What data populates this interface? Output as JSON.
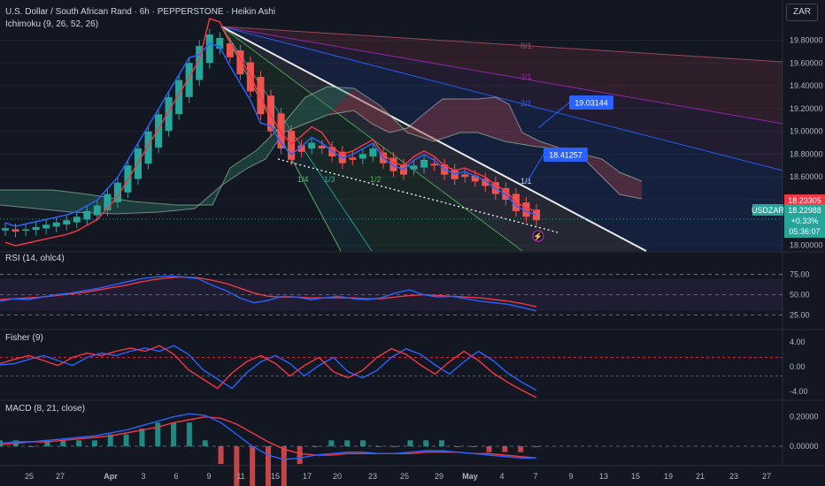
{
  "header": {
    "title": "U.S. Dollar / South African Rand · 6h · PEPPERSTONE · Heikin Ashi",
    "indicator": "Ichimoku (9, 26, 52, 26)",
    "currency_button": "ZAR"
  },
  "colors": {
    "background": "#131722",
    "bull": "#26a69a",
    "bear": "#ef5350",
    "ma_red": "#f23645",
    "ma_blue": "#2962ff",
    "cloud_bull": "#2e7d6b",
    "cloud_bear": "#8e3b48",
    "rsi_line": "#2962ff",
    "rsi_ma": "#f23645"
  },
  "chart_data": [
    {
      "type": "candlestick",
      "style": "Heikin Ashi",
      "symbol": "USDZAR",
      "price_axis_ticks": [
        "19.80000",
        "19.60000",
        "19.40000",
        "19.20000",
        "19.00000",
        "18.80000",
        "18.60000",
        "18.40000",
        "18.00000"
      ],
      "time_axis_ticks": [
        "25",
        "27",
        "Apr",
        "3",
        "6",
        "9",
        "11",
        "15",
        "17",
        "20",
        "23",
        "25",
        "29",
        "May",
        "4",
        "7",
        "9",
        "13",
        "15",
        "19",
        "21",
        "23",
        "27"
      ],
      "last_price": "18.22988",
      "prev_price_badge": "18.23305",
      "change": "+0.33%",
      "countdown": "05:36:07",
      "fan_labels": [
        "8/1",
        "3/1",
        "2/1",
        "1/1",
        "1/2",
        "1/3",
        "1/4"
      ],
      "callouts": [
        "19.03144",
        "18.41257"
      ],
      "closes_approx": [
        18.15,
        18.12,
        18.14,
        18.16,
        18.18,
        18.2,
        18.22,
        18.25,
        18.3,
        18.35,
        18.45,
        18.55,
        18.7,
        18.85,
        19.0,
        19.15,
        19.3,
        19.45,
        19.6,
        19.75,
        19.85,
        19.82,
        19.65,
        19.5,
        19.35,
        19.15,
        19.0,
        18.85,
        18.75,
        18.82,
        18.9,
        18.85,
        18.78,
        18.72,
        18.75,
        18.8,
        18.85,
        18.72,
        18.65,
        18.62,
        18.7,
        18.75,
        18.7,
        18.62,
        18.58,
        18.6,
        18.56,
        18.52,
        18.45,
        18.4,
        18.3,
        18.25,
        18.22
      ]
    },
    {
      "type": "line",
      "title": "RSI (14, ohlc4)",
      "ticks": [
        "75.00",
        "50.00",
        "25.00"
      ],
      "series": [
        {
          "name": "RSI",
          "values": [
            42,
            45,
            44,
            47,
            50,
            52,
            55,
            58,
            62,
            66,
            70,
            72,
            73,
            72,
            70,
            62,
            55,
            46,
            40,
            43,
            48,
            47,
            44,
            46,
            48,
            45,
            44,
            46,
            52,
            56,
            50,
            47,
            48,
            45,
            42,
            40,
            38,
            34,
            30
          ]
        },
        {
          "name": "RSI MA",
          "values": [
            44,
            45,
            46,
            47,
            49,
            51,
            53,
            56,
            59,
            62,
            66,
            69,
            71,
            72,
            71,
            68,
            64,
            58,
            52,
            48,
            47,
            47,
            46,
            46,
            46,
            46,
            45,
            45,
            47,
            49,
            50,
            49,
            48,
            47,
            46,
            44,
            42,
            39,
            35
          ]
        }
      ]
    },
    {
      "type": "line",
      "title": "Fisher (9)",
      "ticks": [
        "4.00",
        "0.00",
        "-4.00"
      ],
      "series": [
        {
          "name": "Fisher",
          "values": [
            0.5,
            1.2,
            1.8,
            1.0,
            0.2,
            1.5,
            2.2,
            1.8,
            2.5,
            3.0,
            2.5,
            3.4,
            2.0,
            -0.5,
            -2.0,
            -3.5,
            -1.0,
            0.8,
            1.8,
            0.5,
            -1.5,
            0.2,
            1.5,
            -0.8,
            -1.8,
            -0.6,
            1.5,
            2.9,
            2.0,
            0.3,
            -1.2,
            0.8,
            2.5,
            1.0,
            -1.0,
            -2.5,
            -3.8,
            -5.0
          ]
        },
        {
          "name": "Trigger",
          "values": [
            0.3,
            0.5,
            1.2,
            1.8,
            1.0,
            0.2,
            1.5,
            2.2,
            1.8,
            2.5,
            3.0,
            2.5,
            3.4,
            2.0,
            -0.5,
            -2.0,
            -3.5,
            -1.0,
            0.8,
            1.8,
            0.5,
            -1.5,
            0.2,
            1.5,
            -0.8,
            -1.8,
            -0.6,
            1.5,
            2.9,
            2.0,
            0.3,
            -1.2,
            0.8,
            2.5,
            1.0,
            -1.0,
            -2.5,
            -3.8
          ]
        }
      ]
    },
    {
      "type": "bar",
      "title": "MACD (8, 21, close)",
      "ticks": [
        "0.20000",
        "0.00000"
      ],
      "series": [
        {
          "name": "MACD",
          "values": [
            0.02,
            0.03,
            0.03,
            0.04,
            0.05,
            0.06,
            0.07,
            0.09,
            0.11,
            0.14,
            0.17,
            0.2,
            0.22,
            0.21,
            0.16,
            0.08,
            0.0,
            -0.06,
            -0.09,
            -0.08,
            -0.06,
            -0.05,
            -0.04,
            -0.04,
            -0.05,
            -0.05,
            -0.04,
            -0.03,
            -0.03,
            -0.04,
            -0.05,
            -0.06,
            -0.07,
            -0.08,
            -0.08
          ]
        },
        {
          "name": "Signal",
          "values": [
            0.01,
            0.02,
            0.03,
            0.03,
            0.04,
            0.05,
            0.06,
            0.07,
            0.09,
            0.11,
            0.13,
            0.16,
            0.18,
            0.2,
            0.19,
            0.15,
            0.09,
            0.03,
            -0.02,
            -0.05,
            -0.06,
            -0.06,
            -0.05,
            -0.05,
            -0.05,
            -0.05,
            -0.05,
            -0.04,
            -0.04,
            -0.04,
            -0.05,
            -0.05,
            -0.06,
            -0.07,
            -0.08
          ]
        }
      ]
    }
  ],
  "panels": {
    "rsi_title": "RSI (14, ohlc4)",
    "fisher_title": "Fisher (9)",
    "macd_title": "MACD (8, 21, close)"
  }
}
